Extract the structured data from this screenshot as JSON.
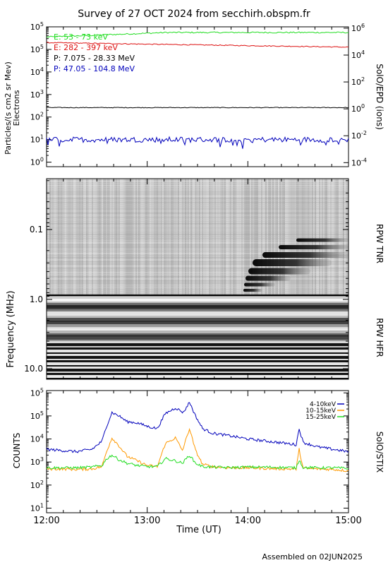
{
  "title": "Survey of 27 OCT 2024 from secchirh.obspm.fr",
  "footer": "Assembled on 02JUN2025",
  "colors": {
    "green": "#22dd22",
    "red": "#dd1111",
    "black": "#000000",
    "blue": "#0000bb",
    "orange": "#ff9900"
  },
  "chart_data": [
    {
      "type": "line",
      "panel": "epd",
      "ylabel": "Particles/(s cm2 sr Mev)",
      "ylabel2": "Electrons",
      "right_label": "SolO/EPD (ions)",
      "yscale": "log",
      "ylim_exp": [
        -0.2,
        6
      ],
      "yticks_left": [
        "10^0",
        "10^1",
        "10^2",
        "10^3",
        "10^4",
        "10^5",
        "10^5"
      ],
      "yticks_right": [
        "10^-4",
        "10^-2",
        "10^0",
        "10^2",
        "10^4",
        "10^6"
      ],
      "xlim": [
        "12:00",
        "15:00"
      ],
      "legend_position": "top-left",
      "series": [
        {
          "name": "E: 53 - 73 keV",
          "color": "#22dd22",
          "log10_start": 5.55,
          "log10_end": 5.75,
          "noise": 0.03
        },
        {
          "name": "E: 282 - 397 keV",
          "color": "#dd1111",
          "log10_start": 5.3,
          "log10_end": 5.1,
          "noise": 0.02
        },
        {
          "name": "P: 7.075 - 28.33 MeV",
          "color": "#000000",
          "log10_start": 2.42,
          "log10_end": 2.42,
          "noise": 0.015
        },
        {
          "name": "P: 47.05 - 104.8 MeV",
          "color": "#0000bb",
          "log10_start": 1.0,
          "log10_end": 1.0,
          "noise": 0.12
        }
      ]
    },
    {
      "type": "heatmap",
      "panel": "rpw",
      "ylabel": "Frequency (MHz)",
      "ytick_labels": [
        "0.1",
        "1.0",
        "10.0"
      ],
      "right_labels": [
        "RPW TNR",
        "RPW HFR"
      ],
      "xlim": [
        "12:00",
        "15:00"
      ]
    },
    {
      "type": "line",
      "panel": "stix",
      "ylabel": "COUNTS",
      "right_label": "SolO/STIX",
      "xlabel": "Time (UT)",
      "yscale": "log",
      "ytick_labels": [
        "10^1",
        "10^2",
        "10^3",
        "10^4",
        "10^5",
        "10^5"
      ],
      "x_tick_labels": [
        "12:00",
        "13:00",
        "14:00",
        "15:00"
      ],
      "legend_position": "top-right",
      "series": [
        {
          "name": "4-10keV",
          "color": "#0000bb",
          "points": [
            [
              12.0,
              3.55
            ],
            [
              12.15,
              3.5
            ],
            [
              12.3,
              3.45
            ],
            [
              12.45,
              3.55
            ],
            [
              12.55,
              3.9
            ],
            [
              12.6,
              4.6
            ],
            [
              12.65,
              5.15
            ],
            [
              12.72,
              5.0
            ],
            [
              12.8,
              4.75
            ],
            [
              12.9,
              4.7
            ],
            [
              13.0,
              4.55
            ],
            [
              13.1,
              4.45
            ],
            [
              13.18,
              5.1
            ],
            [
              13.28,
              5.35
            ],
            [
              13.36,
              5.15
            ],
            [
              13.42,
              5.6
            ],
            [
              13.48,
              5.0
            ],
            [
              13.55,
              4.45
            ],
            [
              13.65,
              4.25
            ],
            [
              13.8,
              4.15
            ],
            [
              14.0,
              4.0
            ],
            [
              14.2,
              3.9
            ],
            [
              14.4,
              3.8
            ],
            [
              14.48,
              3.75
            ],
            [
              14.51,
              4.45
            ],
            [
              14.55,
              3.85
            ],
            [
              14.7,
              3.65
            ],
            [
              14.85,
              3.55
            ],
            [
              15.0,
              3.45
            ]
          ]
        },
        {
          "name": "10-15keV",
          "color": "#ff9900",
          "points": [
            [
              12.0,
              2.7
            ],
            [
              12.15,
              2.7
            ],
            [
              12.3,
              2.68
            ],
            [
              12.45,
              2.7
            ],
            [
              12.55,
              2.8
            ],
            [
              12.6,
              3.5
            ],
            [
              12.65,
              4.05
            ],
            [
              12.72,
              3.7
            ],
            [
              12.8,
              3.25
            ],
            [
              12.9,
              3.05
            ],
            [
              13.0,
              2.85
            ],
            [
              13.1,
              2.8
            ],
            [
              13.18,
              3.8
            ],
            [
              13.28,
              4.05
            ],
            [
              13.35,
              3.5
            ],
            [
              13.42,
              4.45
            ],
            [
              13.48,
              3.5
            ],
            [
              13.55,
              2.9
            ],
            [
              13.65,
              2.8
            ],
            [
              13.8,
              2.75
            ],
            [
              14.0,
              2.75
            ],
            [
              14.2,
              2.72
            ],
            [
              14.4,
              2.7
            ],
            [
              14.48,
              2.7
            ],
            [
              14.51,
              3.55
            ],
            [
              14.55,
              2.72
            ],
            [
              14.7,
              2.7
            ],
            [
              14.85,
              2.68
            ],
            [
              15.0,
              2.62
            ]
          ]
        },
        {
          "name": "15-25keV",
          "color": "#22dd22",
          "points": [
            [
              12.0,
              2.75
            ],
            [
              12.15,
              2.75
            ],
            [
              12.3,
              2.75
            ],
            [
              12.45,
              2.78
            ],
            [
              12.55,
              2.85
            ],
            [
              12.6,
              3.15
            ],
            [
              12.65,
              3.3
            ],
            [
              12.72,
              3.1
            ],
            [
              12.8,
              2.95
            ],
            [
              12.9,
              2.85
            ],
            [
              13.0,
              2.8
            ],
            [
              13.1,
              2.8
            ],
            [
              13.18,
              3.15
            ],
            [
              13.28,
              3.05
            ],
            [
              13.35,
              2.95
            ],
            [
              13.42,
              3.3
            ],
            [
              13.48,
              2.95
            ],
            [
              13.55,
              2.8
            ],
            [
              13.65,
              2.78
            ],
            [
              13.8,
              2.76
            ],
            [
              14.0,
              2.78
            ],
            [
              14.2,
              2.78
            ],
            [
              14.4,
              2.76
            ],
            [
              14.48,
              2.75
            ],
            [
              14.51,
              3.1
            ],
            [
              14.55,
              2.76
            ],
            [
              14.7,
              2.75
            ],
            [
              14.85,
              2.75
            ],
            [
              15.0,
              2.72
            ]
          ]
        }
      ]
    }
  ]
}
